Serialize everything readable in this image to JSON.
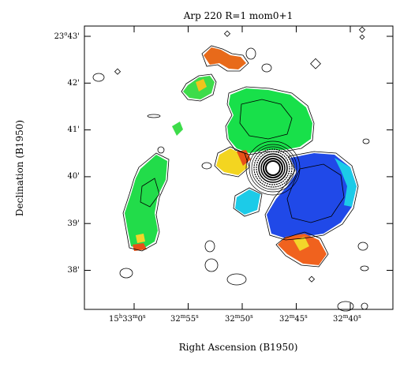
{
  "chart_data": {
    "type": "map",
    "title": "Arp 220 R=1 mom0+1",
    "xlabel": "Right Ascension (B1950)",
    "ylabel": "Declination (B1950)",
    "x_ticks": [
      {
        "h": "15",
        "m": "33",
        "s": "0",
        "value_s": 0
      },
      {
        "m": "32",
        "s": "55",
        "value_s": -5
      },
      {
        "m": "32",
        "s": "50",
        "value_s": -10
      },
      {
        "m": "32",
        "s": "45",
        "value_s": -15
      },
      {
        "m": "32",
        "s": "40",
        "value_s": -20
      }
    ],
    "y_ticks": [
      {
        "deg": "23",
        "arcmin": "43",
        "value": 43
      },
      {
        "arcmin": "42",
        "value": 42
      },
      {
        "arcmin": "41",
        "value": 41
      },
      {
        "arcmin": "40",
        "value": 40
      },
      {
        "arcmin": "39",
        "value": 39
      },
      {
        "arcmin": "38",
        "value": 38
      }
    ],
    "colors": {
      "approaching": "#1f3fe0",
      "intermediate": "#18e05a",
      "receding": "#e8501a",
      "edge": "#18bfe8",
      "contour": "#000000"
    }
  }
}
